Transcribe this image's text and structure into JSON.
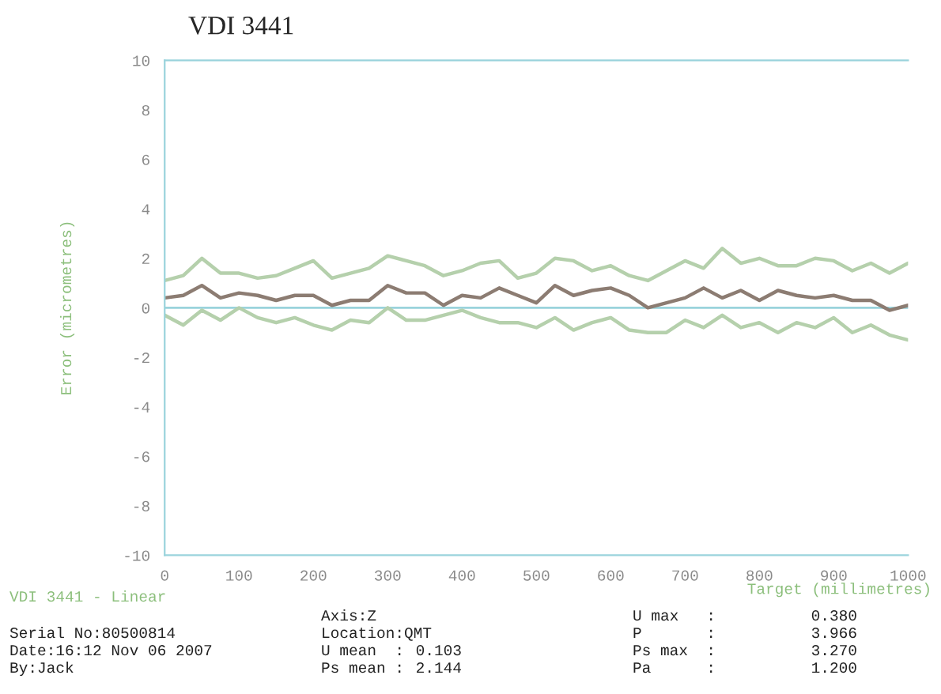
{
  "chart_data": {
    "type": "line",
    "title": "VDI 3441",
    "xlabel": "Target (millimetres)",
    "ylabel": "Error (micrometres)",
    "x": [
      0,
      25,
      50,
      75,
      100,
      125,
      150,
      175,
      200,
      225,
      250,
      275,
      300,
      325,
      350,
      375,
      400,
      425,
      450,
      475,
      500,
      525,
      550,
      575,
      600,
      625,
      650,
      675,
      700,
      725,
      750,
      775,
      800,
      825,
      850,
      875,
      900,
      925,
      950,
      975,
      1000
    ],
    "series": [
      {
        "color": "#b5d0ac",
        "values": [
          1.1,
          1.3,
          2.0,
          1.4,
          1.4,
          1.2,
          1.3,
          1.6,
          1.9,
          1.2,
          1.4,
          1.6,
          2.1,
          1.9,
          1.7,
          1.3,
          1.5,
          1.8,
          1.9,
          1.2,
          1.4,
          2.0,
          1.9,
          1.5,
          1.7,
          1.3,
          1.1,
          1.5,
          1.9,
          1.6,
          2.4,
          1.8,
          2.0,
          1.7,
          1.7,
          2.0,
          1.9,
          1.5,
          1.8,
          1.4,
          1.8
        ]
      },
      {
        "color": "#8c7c72",
        "values": [
          0.4,
          0.5,
          0.9,
          0.4,
          0.6,
          0.5,
          0.3,
          0.5,
          0.5,
          0.1,
          0.3,
          0.3,
          0.9,
          0.6,
          0.6,
          0.1,
          0.5,
          0.4,
          0.8,
          0.5,
          0.2,
          0.9,
          0.5,
          0.7,
          0.8,
          0.5,
          0.0,
          0.2,
          0.4,
          0.8,
          0.4,
          0.7,
          0.3,
          0.7,
          0.5,
          0.4,
          0.5,
          0.3,
          0.3,
          -0.1,
          0.1
        ]
      },
      {
        "color": "#b5d0ac",
        "values": [
          -0.3,
          -0.7,
          -0.1,
          -0.5,
          0.0,
          -0.4,
          -0.6,
          -0.4,
          -0.7,
          -0.9,
          -0.5,
          -0.6,
          0.0,
          -0.5,
          -0.5,
          -0.3,
          -0.1,
          -0.4,
          -0.6,
          -0.6,
          -0.8,
          -0.4,
          -0.9,
          -0.6,
          -0.4,
          -0.9,
          -1.0,
          -1.0,
          -0.5,
          -0.8,
          -0.3,
          -0.8,
          -0.6,
          -1.0,
          -0.6,
          -0.8,
          -0.4,
          -1.0,
          -0.7,
          -1.1,
          -1.3
        ]
      }
    ],
    "ref_lines": [
      {
        "axis": "y",
        "value": 0,
        "color": "#9ad3dc"
      }
    ],
    "xlim": [
      0,
      1000
    ],
    "xticks": [
      0,
      100,
      200,
      300,
      400,
      500,
      600,
      700,
      800,
      900,
      1000
    ],
    "ylim": [
      -10,
      10
    ],
    "yticks": [
      -10,
      -8,
      -6,
      -4,
      -2,
      0,
      2,
      4,
      6,
      8,
      10
    ],
    "grid": false,
    "legend": false,
    "marker": "none",
    "line_style": "solid",
    "annotations": [
      "VDI 3441 - Linear",
      "Serial No:80500814",
      "Date:16:12 Nov 06 2007",
      "By:Jack",
      "Axis:Z",
      "Location:QMT",
      "U mean  :",
      "Ps mean :",
      "0.103",
      "2.144",
      "U max   :",
      "P       :",
      "Ps max  :",
      "Pa      :",
      "0.380",
      "3.966",
      "3.270",
      "1.200"
    ]
  }
}
